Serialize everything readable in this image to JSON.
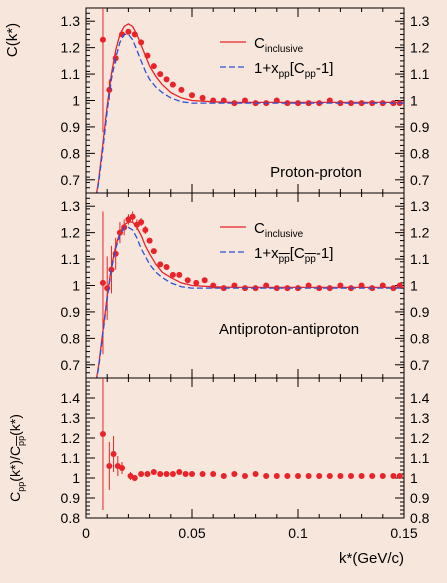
{
  "figure": {
    "xlabel": "k*(GeV/c)",
    "xlim": [
      0,
      0.15
    ],
    "xticks": [
      0,
      0.05,
      0.1,
      0.15
    ],
    "xtick_labels": [
      "0",
      "0.05",
      "0.1",
      "0.15"
    ]
  },
  "colors": {
    "background": "#f7e6dc",
    "data": "#e8242a",
    "inclusive_line": "#e8242a",
    "dashed_line": "#2e52d6"
  },
  "chart_data": [
    {
      "type": "line",
      "panel": "top",
      "ylabel": "C(k*)",
      "ylim": [
        0.65,
        1.35
      ],
      "yticks": [
        0.7,
        0.8,
        0.9,
        1.0,
        1.1,
        1.2,
        1.3
      ],
      "ytick_labels": [
        "0.7",
        "0.8",
        "0.9",
        "1",
        "1.1",
        "1.2",
        "1.3"
      ],
      "annotation": "Proton-proton",
      "legend": {
        "placement": "top-right",
        "entries": [
          {
            "main": "C",
            "sub": "inclusive",
            "rest": "",
            "style": "solid"
          },
          {
            "main": "1+x",
            "sub": "pp",
            "rest": "[C",
            "sub2": "pp",
            "rest2": "-1]",
            "style": "dashed"
          }
        ]
      },
      "series": [
        {
          "name": "Data",
          "kind": "points",
          "x": [
            0.008,
            0.011,
            0.014,
            0.017,
            0.02,
            0.023,
            0.026,
            0.029,
            0.032,
            0.035,
            0.038,
            0.041,
            0.045,
            0.05,
            0.055,
            0.06,
            0.065,
            0.07,
            0.075,
            0.08,
            0.085,
            0.09,
            0.095,
            0.1,
            0.105,
            0.11,
            0.115,
            0.12,
            0.125,
            0.13,
            0.135,
            0.14,
            0.145,
            0.148
          ],
          "y": [
            1.23,
            1.04,
            1.16,
            1.25,
            1.26,
            1.25,
            1.22,
            1.17,
            1.13,
            1.1,
            1.08,
            1.06,
            1.04,
            1.02,
            1.01,
            1.0,
            1.0,
            0.99,
            1.0,
            0.99,
            0.99,
            1.0,
            0.99,
            0.99,
            0.99,
            0.99,
            1.0,
            0.99,
            0.99,
            0.99,
            0.99,
            0.99,
            0.99,
            0.99
          ],
          "err": [
            0.35,
            0.04,
            0.02,
            0.01,
            0.01,
            0.01,
            0.01,
            0.01,
            0.01,
            0.01,
            0.01,
            0.01,
            0.01,
            0.005,
            0.005,
            0.005,
            0.005,
            0.005,
            0.005,
            0.005,
            0.005,
            0.005,
            0.005,
            0.005,
            0.005,
            0.005,
            0.005,
            0.005,
            0.005,
            0.005,
            0.005,
            0.005,
            0.005,
            0.005
          ]
        },
        {
          "name": "C inclusive",
          "kind": "solid",
          "x": [
            0.004,
            0.006,
            0.008,
            0.01,
            0.012,
            0.014,
            0.016,
            0.018,
            0.02,
            0.022,
            0.024,
            0.026,
            0.028,
            0.03,
            0.033,
            0.036,
            0.04,
            0.045,
            0.05,
            0.06,
            0.07,
            0.08,
            0.1,
            0.12,
            0.15
          ],
          "y": [
            0.6,
            0.7,
            0.84,
            0.98,
            1.1,
            1.19,
            1.25,
            1.28,
            1.29,
            1.28,
            1.25,
            1.21,
            1.17,
            1.13,
            1.09,
            1.06,
            1.03,
            1.01,
            1.0,
            0.995,
            0.993,
            0.993,
            0.993,
            0.993,
            0.993
          ]
        },
        {
          "name": "1+x pp [C pp -1]",
          "kind": "dashed",
          "x": [
            0.004,
            0.006,
            0.008,
            0.01,
            0.012,
            0.014,
            0.016,
            0.018,
            0.02,
            0.022,
            0.024,
            0.026,
            0.028,
            0.03,
            0.033,
            0.036,
            0.04,
            0.045,
            0.05,
            0.06,
            0.07,
            0.08,
            0.1,
            0.12,
            0.15
          ],
          "y": [
            0.6,
            0.69,
            0.82,
            0.96,
            1.08,
            1.16,
            1.22,
            1.25,
            1.25,
            1.23,
            1.19,
            1.15,
            1.11,
            1.08,
            1.05,
            1.03,
            1.01,
            0.995,
            0.99,
            0.99,
            0.99,
            0.99,
            0.99,
            0.99,
            0.99
          ]
        }
      ]
    },
    {
      "type": "line",
      "panel": "middle",
      "ylabel": "",
      "ylim": [
        0.65,
        1.35
      ],
      "yticks": [
        0.7,
        0.8,
        0.9,
        1.0,
        1.1,
        1.2,
        1.3
      ],
      "ytick_labels": [
        "0.7",
        "0.8",
        "0.9",
        "1",
        "1.1",
        "1.2",
        "1.3"
      ],
      "annotation": "Antiproton-antiproton",
      "legend": {
        "placement": "top-right",
        "entries": [
          {
            "main": "C",
            "sub": "inclusive",
            "rest": "",
            "style": "solid"
          },
          {
            "main": "1+x",
            "sub": "pp",
            "rest": "[C",
            "sub2": "pp",
            "rest2": "-1]",
            "style": "dashed",
            "overline": true
          }
        ]
      },
      "series": [
        {
          "name": "Data",
          "kind": "points",
          "x": [
            0.008,
            0.01,
            0.012,
            0.014,
            0.016,
            0.018,
            0.02,
            0.022,
            0.024,
            0.026,
            0.028,
            0.03,
            0.032,
            0.035,
            0.038,
            0.041,
            0.044,
            0.048,
            0.052,
            0.056,
            0.06,
            0.065,
            0.07,
            0.075,
            0.08,
            0.085,
            0.09,
            0.095,
            0.1,
            0.105,
            0.11,
            0.115,
            0.12,
            0.125,
            0.13,
            0.135,
            0.14,
            0.145,
            0.148
          ],
          "y": [
            1.01,
            0.99,
            1.06,
            1.12,
            1.2,
            1.22,
            1.25,
            1.26,
            1.23,
            1.24,
            1.21,
            1.17,
            1.13,
            1.08,
            1.07,
            1.04,
            1.04,
            1.02,
            1.01,
            1.02,
            1.0,
            0.99,
            1.0,
            0.99,
            0.99,
            1.0,
            0.99,
            0.99,
            0.99,
            1.0,
            0.99,
            0.99,
            1.0,
            0.99,
            1.0,
            0.99,
            1.0,
            0.99,
            1.0
          ],
          "err": [
            0.27,
            0.12,
            0.09,
            0.06,
            0.04,
            0.03,
            0.02,
            0.02,
            0.02,
            0.015,
            0.015,
            0.01,
            0.01,
            0.01,
            0.01,
            0.01,
            0.01,
            0.01,
            0.005,
            0.005,
            0.005,
            0.005,
            0.005,
            0.005,
            0.005,
            0.005,
            0.005,
            0.005,
            0.005,
            0.005,
            0.005,
            0.005,
            0.005,
            0.005,
            0.005,
            0.005,
            0.005,
            0.005,
            0.005
          ]
        },
        {
          "name": "C inclusive",
          "kind": "solid",
          "x": [
            0.004,
            0.006,
            0.008,
            0.01,
            0.012,
            0.014,
            0.016,
            0.018,
            0.02,
            0.022,
            0.024,
            0.026,
            0.028,
            0.03,
            0.033,
            0.036,
            0.04,
            0.045,
            0.05,
            0.06,
            0.07,
            0.08,
            0.1,
            0.12,
            0.15
          ],
          "y": [
            0.6,
            0.7,
            0.83,
            0.96,
            1.07,
            1.15,
            1.2,
            1.23,
            1.24,
            1.24,
            1.22,
            1.19,
            1.15,
            1.12,
            1.08,
            1.05,
            1.03,
            1.01,
            1.0,
            0.995,
            0.993,
            0.993,
            0.993,
            0.993,
            0.993
          ]
        },
        {
          "name": "1+x pp [C pp -1]",
          "kind": "dashed",
          "x": [
            0.004,
            0.006,
            0.008,
            0.01,
            0.012,
            0.014,
            0.016,
            0.018,
            0.02,
            0.022,
            0.024,
            0.026,
            0.028,
            0.03,
            0.033,
            0.036,
            0.04,
            0.045,
            0.05,
            0.06,
            0.07,
            0.08,
            0.1,
            0.12,
            0.15
          ],
          "y": [
            0.6,
            0.69,
            0.82,
            0.95,
            1.06,
            1.14,
            1.19,
            1.22,
            1.22,
            1.21,
            1.18,
            1.14,
            1.11,
            1.08,
            1.05,
            1.03,
            1.01,
            0.995,
            0.99,
            0.99,
            0.99,
            0.99,
            0.99,
            0.99,
            0.99
          ]
        }
      ]
    },
    {
      "type": "scatter",
      "panel": "bottom",
      "ylabel_parts": [
        "C",
        "pp",
        "(k*)/C",
        "pp",
        "(k*)"
      ],
      "ylim": [
        0.8,
        1.5
      ],
      "yticks": [
        0.8,
        0.9,
        1.0,
        1.1,
        1.2,
        1.3,
        1.4
      ],
      "ytick_labels": [
        "0.8",
        "0.9",
        "1",
        "1.1",
        "1.2",
        "1.3",
        "1.4"
      ],
      "series": [
        {
          "name": "Data",
          "kind": "points",
          "x": [
            0.008,
            0.011,
            0.013,
            0.015,
            0.017,
            0.021,
            0.023,
            0.026,
            0.029,
            0.032,
            0.035,
            0.038,
            0.041,
            0.044,
            0.047,
            0.05,
            0.055,
            0.06,
            0.065,
            0.07,
            0.075,
            0.08,
            0.085,
            0.09,
            0.095,
            0.1,
            0.105,
            0.11,
            0.115,
            0.12,
            0.125,
            0.13,
            0.135,
            0.14,
            0.145,
            0.148
          ],
          "y": [
            1.22,
            1.06,
            1.12,
            1.06,
            1.05,
            1.01,
            1.0,
            1.02,
            1.02,
            1.03,
            1.02,
            1.02,
            1.02,
            1.03,
            1.02,
            1.02,
            1.02,
            1.02,
            1.01,
            1.02,
            1.01,
            1.02,
            1.01,
            1.01,
            1.01,
            1.01,
            1.01,
            1.01,
            1.01,
            1.01,
            1.01,
            1.01,
            1.01,
            1.01,
            1.01,
            1.01
          ],
          "err": [
            0.38,
            0.12,
            0.09,
            0.05,
            0.03,
            0.02,
            0.015,
            0.01,
            0.01,
            0.01,
            0.01,
            0.01,
            0.01,
            0.01,
            0.01,
            0.01,
            0.005,
            0.005,
            0.005,
            0.005,
            0.005,
            0.005,
            0.005,
            0.005,
            0.005,
            0.005,
            0.005,
            0.005,
            0.005,
            0.005,
            0.005,
            0.005,
            0.005,
            0.005,
            0.005,
            0.005
          ]
        }
      ]
    }
  ]
}
